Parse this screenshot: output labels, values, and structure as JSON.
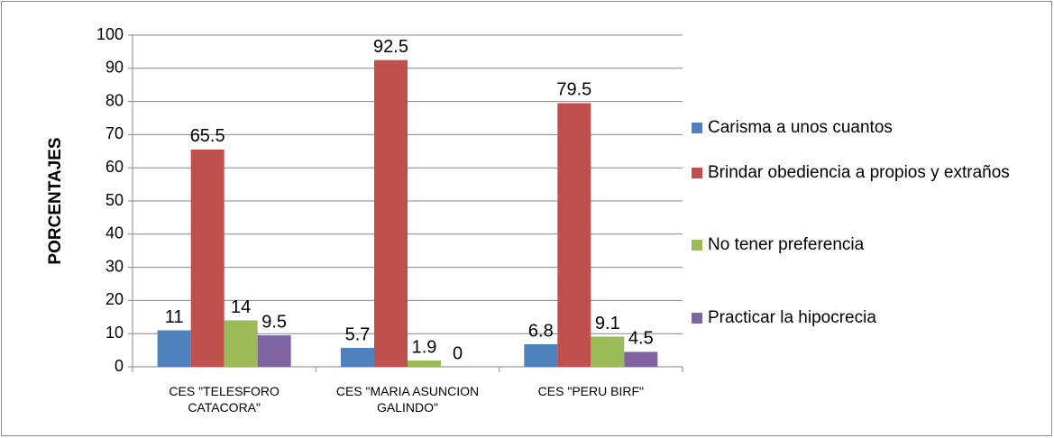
{
  "chart_data": {
    "type": "bar",
    "y_label": "PORCENTAJES",
    "categories": [
      "CES \"TELESFORO CATACORA\"",
      "CES \"MARIA ASUNCION GALINDO\"",
      "CES \"PERU BIRF\""
    ],
    "series": [
      {
        "name": "Carisma a unos cuantos",
        "color": "#4f81bd",
        "values": [
          11,
          5.7,
          6.8
        ]
      },
      {
        "name": "Brindar obediencia a propios y extraños",
        "color": "#c0504d",
        "values": [
          65.5,
          92.5,
          79.5
        ]
      },
      {
        "name": "No tener preferencia",
        "color": "#9bbb59",
        "values": [
          14,
          1.9,
          9.1
        ]
      },
      {
        "name": "Practicar la hipocrecia",
        "color": "#8064a2",
        "values": [
          9.5,
          0,
          4.5
        ]
      }
    ],
    "ylim": [
      0,
      100
    ],
    "yticks": [
      0,
      10,
      20,
      30,
      40,
      50,
      60,
      70,
      80,
      90,
      100
    ],
    "grid": true,
    "legend": "right"
  }
}
